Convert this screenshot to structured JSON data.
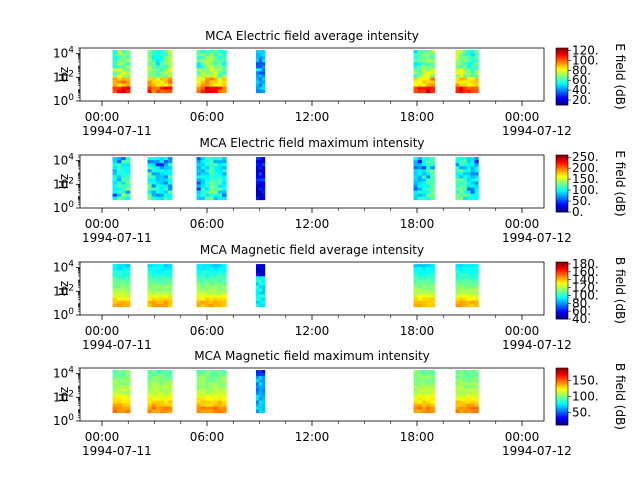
{
  "chart_data": [
    {
      "type": "heatmap",
      "title": "MCA  Electric field average intensity",
      "ylabel": "Hz",
      "y_scale": "log",
      "ylim": [
        1,
        30000
      ],
      "y_ticks": [
        {
          "value": 1,
          "base": "10",
          "exp": "0"
        },
        {
          "value": 100,
          "base": "10",
          "exp": "2"
        },
        {
          "value": 10000,
          "base": "10",
          "exp": "4"
        }
      ],
      "x_tick_labels": [
        "00:00",
        "06:00",
        "12:00",
        "18:00",
        "00:00"
      ],
      "x_date_labels": [
        "1994-07-11",
        "1994-07-12"
      ],
      "colorbar": {
        "label": "E field (dB)",
        "range": [
          10,
          125
        ],
        "ticks": [
          "20.",
          "40.",
          "60.",
          "80.",
          "100.",
          "120."
        ]
      },
      "intervals_hours": [
        [
          0.6,
          1.6
        ],
        [
          2.6,
          4.0
        ],
        [
          5.4,
          7.1
        ],
        [
          8.8,
          9.3
        ],
        [
          17.8,
          19.0
        ],
        [
          20.2,
          21.5
        ]
      ],
      "profile": "eavg"
    },
    {
      "type": "heatmap",
      "title": "MCA  Electric field maximum intensity",
      "ylabel": "Hz",
      "y_scale": "log",
      "ylim": [
        1,
        30000
      ],
      "y_ticks": [
        {
          "value": 1,
          "base": "10",
          "exp": "0"
        },
        {
          "value": 100,
          "base": "10",
          "exp": "2"
        },
        {
          "value": 10000,
          "base": "10",
          "exp": "4"
        }
      ],
      "x_tick_labels": [
        "00:00",
        "06:00",
        "12:00",
        "18:00",
        "00:00"
      ],
      "x_date_labels": [
        "1994-07-11",
        "1994-07-12"
      ],
      "colorbar": {
        "label": "E field (dB)",
        "range": [
          0,
          260
        ],
        "ticks": [
          "0.",
          "50.",
          "100.",
          "150.",
          "200.",
          "250."
        ]
      },
      "intervals_hours": [
        [
          0.6,
          1.6
        ],
        [
          2.6,
          4.0
        ],
        [
          5.4,
          7.1
        ],
        [
          8.8,
          9.3
        ],
        [
          17.8,
          19.0
        ],
        [
          20.2,
          21.5
        ]
      ],
      "profile": "emax"
    },
    {
      "type": "heatmap",
      "title": "MCA  Magnetic field average intensity",
      "ylabel": "Hz",
      "y_scale": "log",
      "ylim": [
        1,
        30000
      ],
      "y_ticks": [
        {
          "value": 1,
          "base": "10",
          "exp": "0"
        },
        {
          "value": 100,
          "base": "10",
          "exp": "2"
        },
        {
          "value": 10000,
          "base": "10",
          "exp": "4"
        }
      ],
      "x_tick_labels": [
        "00:00",
        "06:00",
        "12:00",
        "18:00",
        "00:00"
      ],
      "x_date_labels": [
        "1994-07-11",
        "1994-07-12"
      ],
      "colorbar": {
        "label": "B field (dB)",
        "range": [
          40,
          185
        ],
        "ticks": [
          "40.",
          "60.",
          "80.",
          "100.",
          "120.",
          "140.",
          "160.",
          "180."
        ]
      },
      "intervals_hours": [
        [
          0.6,
          1.6
        ],
        [
          2.6,
          4.0
        ],
        [
          5.4,
          7.1
        ],
        [
          8.8,
          9.3
        ],
        [
          17.8,
          19.0
        ],
        [
          20.2,
          21.5
        ]
      ],
      "profile": "bavg"
    },
    {
      "type": "heatmap",
      "title": "MCA  Magnetic field maximum intensity",
      "ylabel": "Hz",
      "y_scale": "log",
      "ylim": [
        1,
        30000
      ],
      "y_ticks": [
        {
          "value": 1,
          "base": "10",
          "exp": "0"
        },
        {
          "value": 100,
          "base": "10",
          "exp": "2"
        },
        {
          "value": 10000,
          "base": "10",
          "exp": "4"
        }
      ],
      "x_tick_labels": [
        "00:00",
        "06:00",
        "12:00",
        "18:00",
        "00:00"
      ],
      "x_date_labels": [
        "1994-07-11",
        "1994-07-12"
      ],
      "colorbar": {
        "label": "B field (dB)",
        "range": [
          10,
          190
        ],
        "ticks": [
          "50.",
          "100.",
          "150."
        ]
      },
      "intervals_hours": [
        [
          0.6,
          1.6
        ],
        [
          2.6,
          4.0
        ],
        [
          5.4,
          7.1
        ],
        [
          8.8,
          9.3
        ],
        [
          17.8,
          19.0
        ],
        [
          20.2,
          21.5
        ]
      ],
      "profile": "bmax"
    }
  ]
}
